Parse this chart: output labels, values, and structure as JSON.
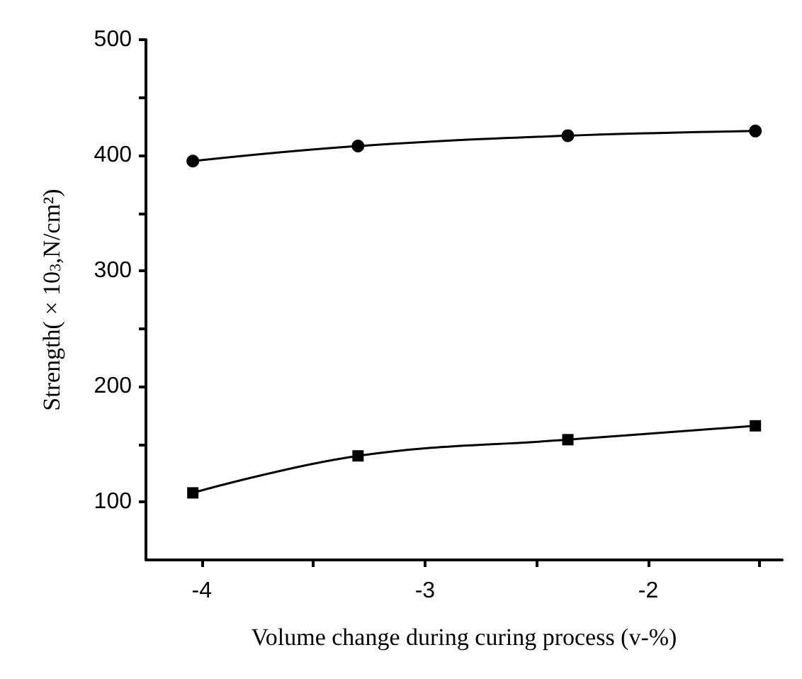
{
  "chart_data": {
    "type": "line",
    "xlabel": "Volume change during curing process (v-%)",
    "ylabel": "Strength( × 10$_{3}$,N/cm²)",
    "xlim": [
      -4.25,
      -1.4
    ],
    "xticks": [
      -4,
      {
        "value": -3.5,
        "label": null
      },
      -3,
      {
        "value": -2.5,
        "label": null
      },
      -2,
      {
        "value": -1.5,
        "label": null
      }
    ],
    "ylim": [
      50,
      500
    ],
    "yticks": [
      100,
      {
        "value": 150,
        "label": null
      },
      200,
      {
        "value": 250,
        "label": null
      },
      300,
      {
        "value": 350,
        "label": null
      },
      400,
      {
        "value": 450,
        "label": null
      },
      500
    ],
    "grid": false,
    "line_style": "solid",
    "series": [
      {
        "color": "#000000",
        "marker": "circle",
        "x": [
          -4.04,
          -3.3,
          -2.36,
          -1.52
        ],
        "values": [
          395,
          408,
          417,
          421
        ]
      },
      {
        "color": "#000000",
        "marker": "square",
        "x": [
          -4.04,
          -3.3,
          -2.36,
          -1.52
        ],
        "values": [
          108,
          140,
          154,
          166
        ]
      }
    ]
  }
}
